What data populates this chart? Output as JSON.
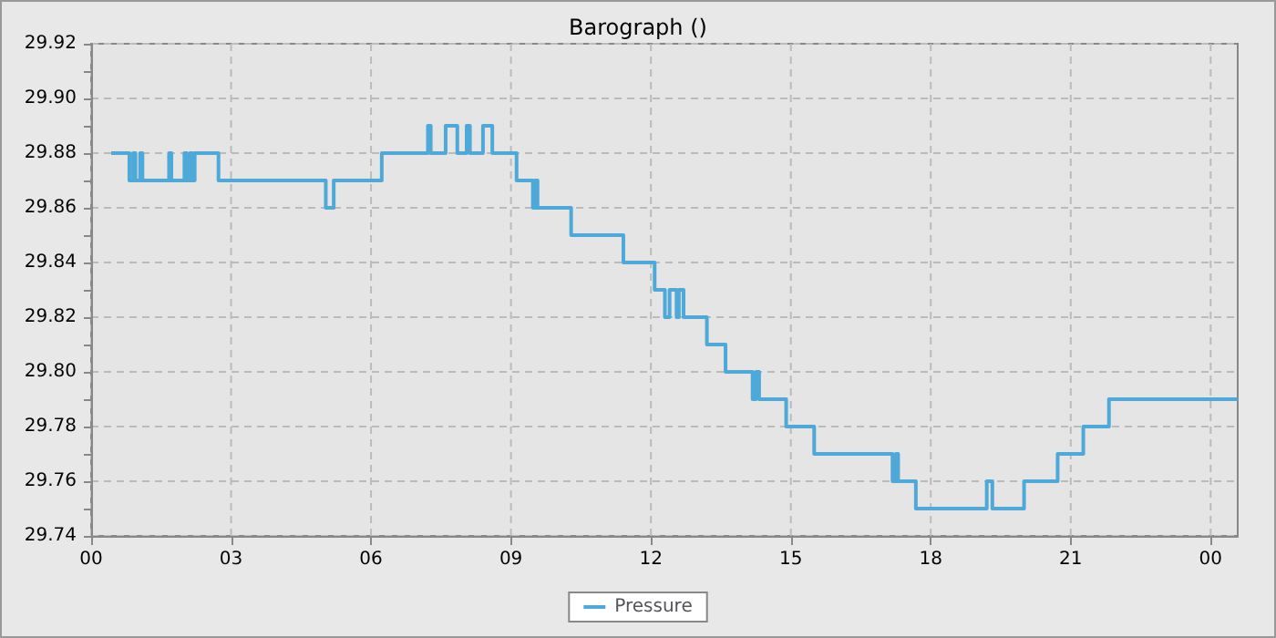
{
  "chart_data": {
    "type": "step",
    "title": "Barograph ()",
    "x": [
      0.43,
      0.82,
      0.9,
      0.95,
      1.05,
      1.1,
      1.67,
      1.72,
      2.0,
      2.05,
      2.12,
      2.17,
      2.22,
      2.73,
      5.03,
      5.2,
      6.23,
      7.22,
      7.28,
      7.6,
      7.85,
      8.05,
      8.12,
      8.4,
      8.6,
      9.12,
      9.47,
      9.52,
      9.57,
      10.29,
      11.41,
      12.08,
      12.3,
      12.4,
      12.55,
      12.6,
      12.7,
      13.2,
      13.6,
      14.18,
      14.25,
      14.32,
      14.9,
      15.5,
      17.18,
      17.25,
      17.3,
      17.68,
      19.2,
      19.32,
      20.0,
      20.72,
      21.27,
      21.82,
      24.58
    ],
    "series": [
      {
        "name": "Pressure",
        "color": "#4ea9d8",
        "values": [
          29.88,
          29.87,
          29.88,
          29.87,
          29.88,
          29.87,
          29.88,
          29.87,
          29.88,
          29.87,
          29.88,
          29.87,
          29.88,
          29.87,
          29.86,
          29.87,
          29.88,
          29.89,
          29.88,
          29.89,
          29.88,
          29.89,
          29.88,
          29.89,
          29.88,
          29.87,
          29.86,
          29.87,
          29.86,
          29.85,
          29.84,
          29.83,
          29.82,
          29.83,
          29.82,
          29.83,
          29.82,
          29.81,
          29.8,
          29.79,
          29.8,
          29.79,
          29.78,
          29.77,
          29.76,
          29.77,
          29.76,
          29.75,
          29.76,
          29.75,
          29.76,
          29.77,
          29.78,
          29.79,
          29.79
        ]
      }
    ],
    "xlim": [
      0,
      24.58
    ],
    "xticks": [
      {
        "value": 0,
        "label": "00"
      },
      {
        "value": 3,
        "label": "03"
      },
      {
        "value": 6,
        "label": "06"
      },
      {
        "value": 9,
        "label": "09"
      },
      {
        "value": 12,
        "label": "12"
      },
      {
        "value": 15,
        "label": "15"
      },
      {
        "value": 18,
        "label": "18"
      },
      {
        "value": 21,
        "label": "21"
      },
      {
        "value": 24,
        "label": "00"
      }
    ],
    "ylim": [
      29.74,
      29.92
    ],
    "yticks": [
      {
        "value": 29.74,
        "label": "29.74"
      },
      {
        "value": 29.75,
        "label": null
      },
      {
        "value": 29.76,
        "label": "29.76"
      },
      {
        "value": 29.77,
        "label": null
      },
      {
        "value": 29.78,
        "label": "29.78"
      },
      {
        "value": 29.79,
        "label": null
      },
      {
        "value": 29.8,
        "label": "29.80"
      },
      {
        "value": 29.81,
        "label": null
      },
      {
        "value": 29.82,
        "label": "29.82"
      },
      {
        "value": 29.83,
        "label": null
      },
      {
        "value": 29.84,
        "label": "29.84"
      },
      {
        "value": 29.85,
        "label": null
      },
      {
        "value": 29.86,
        "label": "29.86"
      },
      {
        "value": 29.87,
        "label": null
      },
      {
        "value": 29.88,
        "label": "29.88"
      },
      {
        "value": 29.89,
        "label": null
      },
      {
        "value": 29.9,
        "label": "29.90"
      },
      {
        "value": 29.91,
        "label": null
      },
      {
        "value": 29.92,
        "label": "29.92"
      }
    ],
    "grid": true,
    "legend": "bottom",
    "marker": "none",
    "line_style": "solid"
  }
}
